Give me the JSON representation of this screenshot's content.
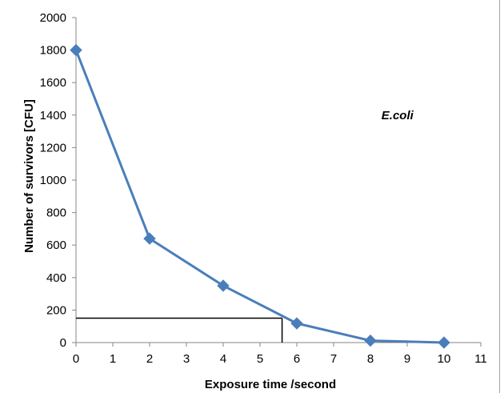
{
  "chart_data": {
    "type": "line",
    "title": "",
    "xlabel": "Exposure time /second",
    "ylabel": "Number of survivors [CFU]",
    "xlim": [
      0,
      11
    ],
    "ylim": [
      0,
      2000
    ],
    "x_ticks": [
      0,
      1,
      2,
      3,
      4,
      5,
      6,
      7,
      8,
      9,
      10,
      11
    ],
    "y_ticks": [
      0,
      200,
      400,
      600,
      800,
      1000,
      1200,
      1400,
      1600,
      1800,
      2000
    ],
    "grid": false,
    "legend": "none",
    "series": [
      {
        "x": [
          0,
          2,
          4,
          6,
          8,
          10
        ],
        "values": [
          1800,
          640,
          350,
          118,
          12,
          0
        ],
        "color": "#4a7ebb",
        "marker": "diamond"
      }
    ],
    "reference_line": {
      "x": 5.6,
      "y": 150,
      "color": "#000000"
    },
    "annotations": [
      {
        "text": "E.coli",
        "x": 8.3,
        "y": 1400
      }
    ]
  }
}
